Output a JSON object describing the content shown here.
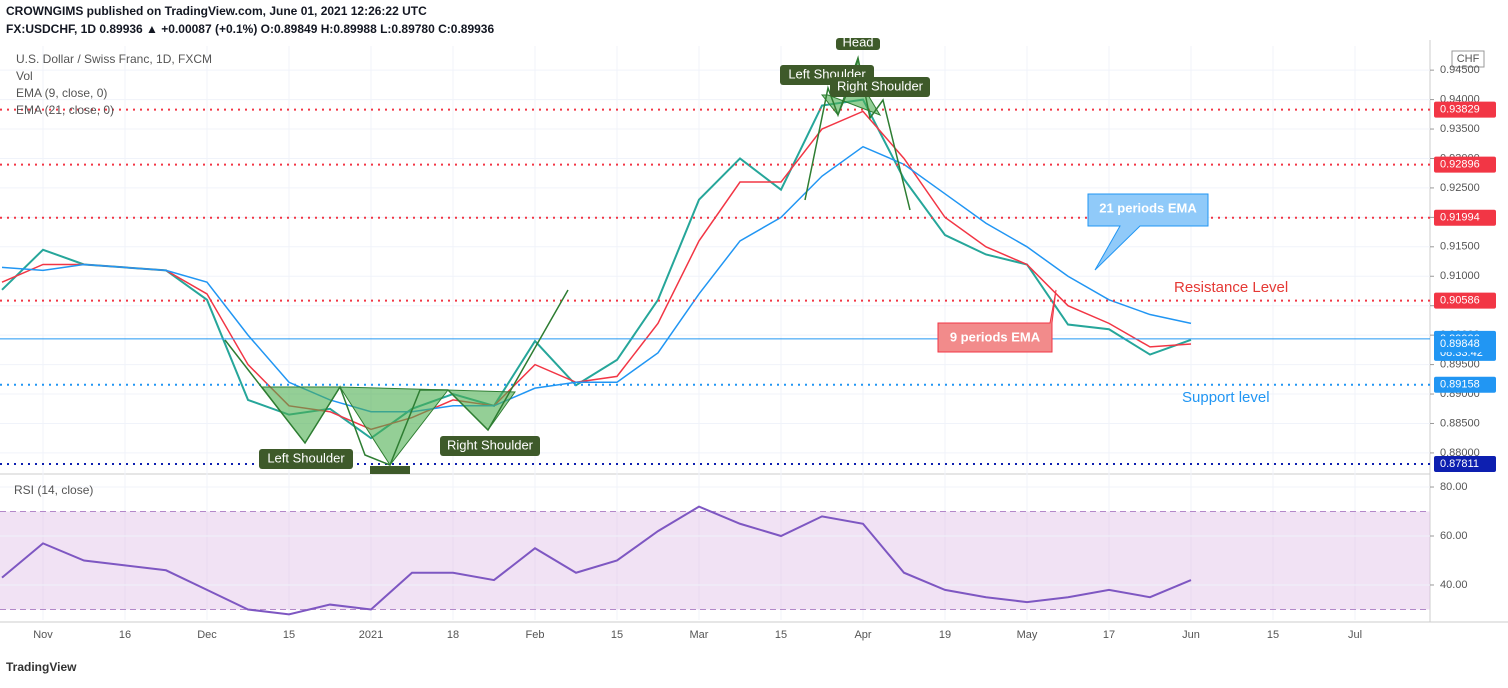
{
  "header": {
    "published": "CROWNGIMS published on TradingView.com, June 01, 2021 12:26:22 UTC",
    "quote": "FX:USDCHF, 1D 0.89936 ▲ +0.00087 (+0.1%) O:0.89849 H:0.89988 L:0.89780 C:0.89936"
  },
  "legend": [
    "U.S. Dollar / Swiss Franc, 1D, FXCM",
    "Vol",
    "EMA (9, close, 0)",
    "EMA (21, close, 0)"
  ],
  "currency": "CHF",
  "countdown": "08:33:42",
  "footer": "TradingView",
  "annotations": {
    "head_top": "Head",
    "left_shoulder_top": "Left Shoulder",
    "right_shoulder_top": "Right Shoulder",
    "left_shoulder_bottom": "Left Shoulder",
    "right_shoulder_bottom": "Right Shoulder",
    "ema21": "21 periods EMA",
    "ema9": "9 periods EMA",
    "resistance": "Resistance Level",
    "support": "Support level"
  },
  "chart_data": [
    {
      "type": "line",
      "categories": [
        null,
        "Nov",
        null,
        "16",
        null,
        "Dec",
        null,
        "15",
        null,
        "2021",
        null,
        "18",
        null,
        "Feb",
        null,
        "15",
        null,
        "Mar",
        null,
        "15",
        null,
        "Apr",
        null,
        "19",
        null,
        "May",
        null,
        "17",
        null,
        "Jun",
        null,
        "15",
        null,
        "Jul",
        null
      ],
      "series": [
        {
          "name": "Close",
          "color": "#26a69a",
          "values": [
            0.9077,
            0.9145,
            0.912,
            0.9115,
            0.911,
            0.906,
            0.889,
            0.8865,
            0.8875,
            0.8825,
            0.8875,
            0.89,
            0.888,
            0.899,
            0.8915,
            0.8958,
            0.906,
            0.923,
            0.93,
            0.9247,
            0.939,
            0.94,
            0.9265,
            0.917,
            0.9137,
            0.912,
            0.9018,
            0.901,
            0.8967,
            0.8992,
            null,
            null,
            null,
            null,
            null
          ]
        },
        {
          "name": "EMA (9, close, 0)",
          "color": "#f23645",
          "values": [
            0.909,
            0.912,
            0.912,
            0.9115,
            0.911,
            0.907,
            0.895,
            0.888,
            0.887,
            0.884,
            0.886,
            0.889,
            0.888,
            0.895,
            0.892,
            0.893,
            0.902,
            0.916,
            0.926,
            0.926,
            0.935,
            0.938,
            0.93,
            0.92,
            0.915,
            0.912,
            0.905,
            0.902,
            0.898,
            0.8985,
            null,
            null,
            null,
            null,
            null
          ]
        },
        {
          "name": "EMA (21, close, 0)",
          "color": "#2196f3",
          "values": [
            0.9115,
            0.911,
            0.912,
            0.9115,
            0.911,
            0.909,
            0.9,
            0.892,
            0.889,
            0.887,
            0.887,
            0.888,
            0.888,
            0.891,
            0.892,
            0.892,
            0.897,
            0.907,
            0.916,
            0.92,
            0.927,
            0.932,
            0.929,
            0.924,
            0.919,
            0.915,
            0.91,
            0.906,
            0.9035,
            0.902,
            null,
            null,
            null,
            null,
            null
          ]
        }
      ],
      "ylim": [
        0.8771,
        0.9491
      ],
      "yticks": [
        {
          "value": 0.945,
          "label": "0.94500"
        },
        {
          "value": 0.94,
          "label": "0.94000"
        },
        {
          "value": 0.935,
          "label": "0.93500"
        },
        {
          "value": 0.93,
          "label": "0.93000"
        },
        {
          "value": 0.925,
          "label": "0.92500"
        },
        {
          "value": 0.92,
          "label": "0.92000"
        },
        {
          "value": 0.915,
          "label": "0.91500"
        },
        {
          "value": 0.91,
          "label": "0.91000"
        },
        {
          "value": 0.905,
          "label": "0.90500"
        },
        {
          "value": 0.9,
          "label": "0.90000"
        },
        {
          "value": 0.895,
          "label": "0.89500"
        },
        {
          "value": 0.89,
          "label": "0.89000"
        },
        {
          "value": 0.885,
          "label": "0.88500"
        },
        {
          "value": 0.88,
          "label": "0.88000"
        }
      ],
      "levels": [
        {
          "value": 0.93829,
          "color": "#f23645",
          "style": "dotted"
        },
        {
          "value": 0.92896,
          "color": "#f23645",
          "style": "dotted"
        },
        {
          "value": 0.91994,
          "color": "#f23645",
          "style": "dotted"
        },
        {
          "value": 0.90586,
          "color": "#f23645",
          "style": "dotted"
        },
        {
          "value": 0.89936,
          "color": "#2196f3",
          "style": "solid"
        },
        {
          "value": 0.89848,
          "color": "#2196f3",
          "style": "none"
        },
        {
          "value": 0.89158,
          "color": "#2196f3",
          "style": "dotted"
        },
        {
          "value": 0.87811,
          "color": "#0d1fb0",
          "style": "dotted"
        }
      ],
      "grid": true
    },
    {
      "type": "line",
      "title": "RSI (14, close)",
      "series": [
        {
          "name": "RSI",
          "color": "#7e57c2",
          "values": [
            43,
            57,
            50,
            48,
            46,
            38,
            30,
            28,
            32,
            30,
            45,
            45,
            42,
            55,
            45,
            50,
            62,
            72,
            65,
            60,
            68,
            65,
            45,
            38,
            35,
            33,
            35,
            38,
            35,
            42,
            null,
            null,
            null,
            null,
            null
          ]
        }
      ],
      "ylim": [
        25.7,
        84.5
      ],
      "yticks": [
        {
          "value": 80,
          "label": "80.00"
        },
        {
          "value": 60,
          "label": "60.00"
        },
        {
          "value": 40,
          "label": "40.00"
        }
      ],
      "band": [
        30,
        70
      ],
      "band_color": "#e1bee7"
    }
  ]
}
